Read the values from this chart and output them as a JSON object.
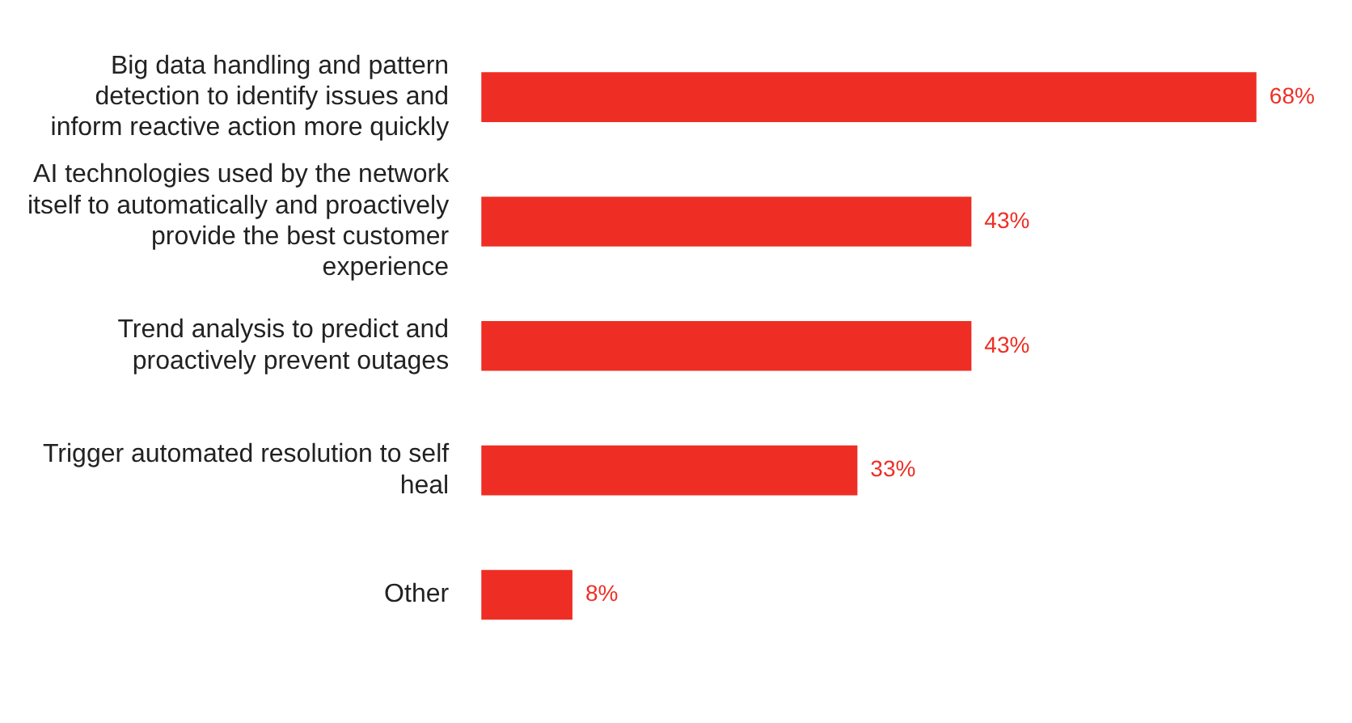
{
  "chart_data": {
    "type": "bar",
    "orientation": "horizontal",
    "categories": [
      "Big data handling and pattern detection to identify issues and inform reactive action more quickly",
      "AI technologies used by the network itself to automatically and proactively provide the best customer experience",
      "Trend analysis to predict and proactively prevent outages",
      "Trigger automated resolution to self heal",
      "Other"
    ],
    "values": [
      68,
      43,
      43,
      33,
      8
    ],
    "value_labels": [
      "68%",
      "43%",
      "43%",
      "33%",
      "8%"
    ],
    "color": "#ee2e24"
  }
}
